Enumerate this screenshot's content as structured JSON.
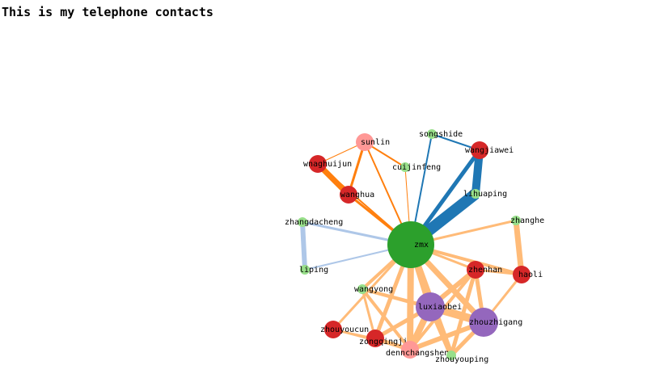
{
  "page": {
    "title": "This is my telephone contacts"
  },
  "graph": {
    "nodes": [
      {
        "id": "zmx",
        "label": "zmx",
        "color": "#2ca02c",
        "size": "large"
      },
      {
        "id": "sunlin",
        "label": "sunlin",
        "color": "#ff9896",
        "size": "medium"
      },
      {
        "id": "songshide",
        "label": "songshide",
        "color": "#98df8a",
        "size": "small"
      },
      {
        "id": "wangjiawei",
        "label": "wangjiawei",
        "color": "#d62728",
        "size": "medium"
      },
      {
        "id": "wnaghuijun",
        "label": "wnaghuijun",
        "color": "#d62728",
        "size": "medium"
      },
      {
        "id": "cuijinfeng",
        "label": "cuijinfeng",
        "color": "#98df8a",
        "size": "small"
      },
      {
        "id": "wanghua",
        "label": "wanghua",
        "color": "#d62728",
        "size": "medium"
      },
      {
        "id": "lihuaping",
        "label": "lihuaping",
        "color": "#98df8a",
        "size": "small"
      },
      {
        "id": "zhangdacheng",
        "label": "zhangdacheng",
        "color": "#98df8a",
        "size": "small"
      },
      {
        "id": "zhanghe",
        "label": "zhanghe",
        "color": "#98df8a",
        "size": "small"
      },
      {
        "id": "liping",
        "label": "liping",
        "color": "#98df8a",
        "size": "small"
      },
      {
        "id": "zhenhan",
        "label": "zhenhan",
        "color": "#d62728",
        "size": "medium"
      },
      {
        "id": "haoli",
        "label": "haoli",
        "color": "#d62728",
        "size": "medium"
      },
      {
        "id": "wangyong",
        "label": "wangyong",
        "color": "#98df8a",
        "size": "small"
      },
      {
        "id": "luxiaobei",
        "label": "luxiaobei",
        "color": "#9467bd",
        "size": "xlarge"
      },
      {
        "id": "zhouzhigang",
        "label": "zhouzhigang",
        "color": "#9467bd",
        "size": "xlarge"
      },
      {
        "id": "zhouyoucun",
        "label": "zhouyoucun",
        "color": "#d62728",
        "size": "medium"
      },
      {
        "id": "zongqingjia",
        "label": "zongqingji…",
        "color": "#d62728",
        "size": "medium"
      },
      {
        "id": "dennchangsheng",
        "label": "dennchangsheng",
        "color": "#ff9896",
        "size": "medium"
      },
      {
        "id": "zhouyouping",
        "label": "zhouyouping",
        "color": "#98df8a",
        "size": "small"
      }
    ],
    "links": [
      {
        "source": "zmx",
        "target": "sunlin",
        "color": "#ff7f0e",
        "weight": 2
      },
      {
        "source": "zmx",
        "target": "wnaghuijun",
        "color": "#ff7f0e",
        "weight": 2
      },
      {
        "source": "zmx",
        "target": "wanghua",
        "color": "#ff7f0e",
        "weight": 3
      },
      {
        "source": "zmx",
        "target": "cuijinfeng",
        "color": "#ff7f0e",
        "weight": 1
      },
      {
        "source": "sunlin",
        "target": "wnaghuijun",
        "color": "#ff7f0e",
        "weight": 1
      },
      {
        "source": "sunlin",
        "target": "wanghua",
        "color": "#ff7f0e",
        "weight": 3
      },
      {
        "source": "sunlin",
        "target": "cuijinfeng",
        "color": "#ff7f0e",
        "weight": 2
      },
      {
        "source": "wnaghuijun",
        "target": "wanghua",
        "color": "#ff7f0e",
        "weight": 7
      },
      {
        "source": "zmx",
        "target": "songshide",
        "color": "#1f77b4",
        "weight": 2
      },
      {
        "source": "songshide",
        "target": "wangjiawei",
        "color": "#1f77b4",
        "weight": 2
      },
      {
        "source": "zmx",
        "target": "wangjiawei",
        "color": "#1f77b4",
        "weight": 5
      },
      {
        "source": "zmx",
        "target": "lihuaping",
        "color": "#1f77b4",
        "weight": 14
      },
      {
        "source": "wangjiawei",
        "target": "lihuaping",
        "color": "#1f77b4",
        "weight": 10
      },
      {
        "source": "zmx",
        "target": "zhangdacheng",
        "color": "#aec7e8",
        "weight": 3
      },
      {
        "source": "zmx",
        "target": "liping",
        "color": "#aec7e8",
        "weight": 2
      },
      {
        "source": "zhangdacheng",
        "target": "liping",
        "color": "#aec7e8",
        "weight": 6
      },
      {
        "source": "zmx",
        "target": "zhanghe",
        "color": "#ffbb78",
        "weight": 3
      },
      {
        "source": "zhanghe",
        "target": "haoli",
        "color": "#ffbb78",
        "weight": 7
      },
      {
        "source": "zmx",
        "target": "zhenhan",
        "color": "#ffbb78",
        "weight": 3
      },
      {
        "source": "zmx",
        "target": "haoli",
        "color": "#ffbb78",
        "weight": 4
      },
      {
        "source": "zhenhan",
        "target": "haoli",
        "color": "#ffbb78",
        "weight": 3
      },
      {
        "source": "haoli",
        "target": "zhouzhigang",
        "color": "#ffbb78",
        "weight": 3
      },
      {
        "source": "zmx",
        "target": "wangyong",
        "color": "#ffbb78",
        "weight": 4
      },
      {
        "source": "zmx",
        "target": "luxiaobei",
        "color": "#ffbb78",
        "weight": 8
      },
      {
        "source": "zmx",
        "target": "zhouzhigang",
        "color": "#ffbb78",
        "weight": 7
      },
      {
        "source": "zmx",
        "target": "zhouyoucun",
        "color": "#ffbb78",
        "weight": 3
      },
      {
        "source": "zmx",
        "target": "zongqingjia",
        "color": "#ffbb78",
        "weight": 5
      },
      {
        "source": "zmx",
        "target": "dennchangsheng",
        "color": "#ffbb78",
        "weight": 8
      },
      {
        "source": "zmx",
        "target": "zhouyouping",
        "color": "#ffbb78",
        "weight": 7
      },
      {
        "source": "zhenhan",
        "target": "luxiaobei",
        "color": "#ffbb78",
        "weight": 6
      },
      {
        "source": "zhenhan",
        "target": "zhouzhigang",
        "color": "#ffbb78",
        "weight": 5
      },
      {
        "source": "zhenhan",
        "target": "zhouyouping",
        "color": "#ffbb78",
        "weight": 5
      },
      {
        "source": "zhenhan",
        "target": "dennchangsheng",
        "color": "#ffbb78",
        "weight": 4
      },
      {
        "source": "luxiaobei",
        "target": "zhouzhigang",
        "color": "#ffbb78",
        "weight": 10
      },
      {
        "source": "luxiaobei",
        "target": "wangyong",
        "color": "#ffbb78",
        "weight": 4
      },
      {
        "source": "luxiaobei",
        "target": "zongqingjia",
        "color": "#ffbb78",
        "weight": 5
      },
      {
        "source": "luxiaobei",
        "target": "dennchangsheng",
        "color": "#ffbb78",
        "weight": 8
      },
      {
        "source": "luxiaobei",
        "target": "zhouyouping",
        "color": "#ffbb78",
        "weight": 6
      },
      {
        "source": "zhouzhigang",
        "target": "wangyong",
        "color": "#ffbb78",
        "weight": 4
      },
      {
        "source": "zhouzhigang",
        "target": "dennchangsheng",
        "color": "#ffbb78",
        "weight": 6
      },
      {
        "source": "zhouzhigang",
        "target": "zhouyouping",
        "color": "#ffbb78",
        "weight": 5
      },
      {
        "source": "wangyong",
        "target": "zongqingjia",
        "color": "#ffbb78",
        "weight": 3
      },
      {
        "source": "wangyong",
        "target": "dennchangsheng",
        "color": "#ffbb78",
        "weight": 4
      },
      {
        "source": "zhouyoucun",
        "target": "zongqingjia",
        "color": "#ffbb78",
        "weight": 2
      },
      {
        "source": "zhouyoucun",
        "target": "dennchangsheng",
        "color": "#ffbb78",
        "weight": 2
      },
      {
        "source": "zongqingjia",
        "target": "dennchangsheng",
        "color": "#ffbb78",
        "weight": 5
      }
    ]
  }
}
